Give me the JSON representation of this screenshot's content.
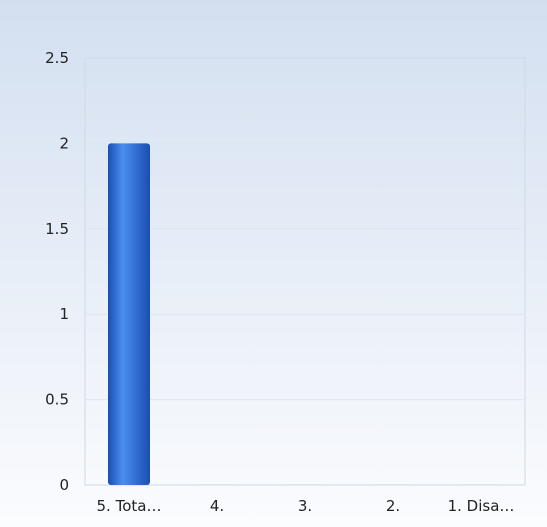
{
  "chart_data": {
    "type": "bar",
    "categories": [
      "5. Tota…",
      "4.",
      "3.",
      "2.",
      "1. Disa…"
    ],
    "values": [
      2,
      0,
      0,
      0,
      0
    ],
    "y_ticks": [
      "0",
      "0.5",
      "1",
      "1.5",
      "2",
      "2.5"
    ],
    "ylim": [
      0,
      2.5
    ],
    "grid": true,
    "legend": "none",
    "colors": {
      "bar_dark": "#1a4fb0",
      "bar_light": "#4b8df0",
      "gridline": "#dde5ef",
      "plot_border": "#cfd9e6"
    }
  }
}
